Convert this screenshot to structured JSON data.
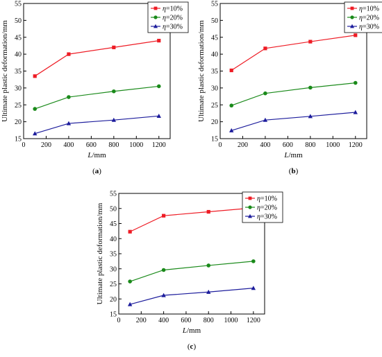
{
  "chart_data": [
    {
      "type": "line",
      "panel_label": "(a)",
      "xlabel_main": "L",
      "xlabel_unit": "/mm",
      "ylabel": "Ultimate plastic deformation/mm",
      "xlim": [
        0,
        1300
      ],
      "ylim": [
        15,
        55
      ],
      "xticks": [
        0,
        200,
        400,
        600,
        800,
        1000,
        1200
      ],
      "yticks": [
        15,
        20,
        25,
        30,
        35,
        40,
        45,
        50,
        55
      ],
      "legend_position": "top-right",
      "x": [
        100,
        400,
        800,
        1200
      ],
      "series": [
        {
          "name_sym": "η",
          "name_rest": "=10%",
          "color": "#ee1c25",
          "marker": "square",
          "values": [
            33.5,
            40.0,
            42.0,
            44.0
          ]
        },
        {
          "name_sym": "η",
          "name_rest": "=20%",
          "color": "#1a8a1a",
          "marker": "circle",
          "values": [
            23.8,
            27.3,
            29.0,
            30.5
          ]
        },
        {
          "name_sym": "η",
          "name_rest": "=30%",
          "color": "#1c1c9c",
          "marker": "triangle",
          "values": [
            16.5,
            19.5,
            20.5,
            21.7
          ]
        }
      ]
    },
    {
      "type": "line",
      "panel_label": "(b)",
      "xlabel_main": "L",
      "xlabel_unit": "/mm",
      "ylabel": "Ultimate plastic deformation/mm",
      "xlim": [
        0,
        1300
      ],
      "ylim": [
        15,
        55
      ],
      "xticks": [
        0,
        200,
        400,
        600,
        800,
        1000,
        1200
      ],
      "yticks": [
        15,
        20,
        25,
        30,
        35,
        40,
        45,
        50,
        55
      ],
      "legend_position": "top-right",
      "x": [
        100,
        400,
        800,
        1200
      ],
      "series": [
        {
          "name_sym": "η",
          "name_rest": "=10%",
          "color": "#ee1c25",
          "marker": "square",
          "values": [
            35.2,
            41.7,
            43.7,
            45.6
          ]
        },
        {
          "name_sym": "η",
          "name_rest": "=20%",
          "color": "#1a8a1a",
          "marker": "circle",
          "values": [
            24.8,
            28.4,
            30.1,
            31.5
          ]
        },
        {
          "name_sym": "η",
          "name_rest": "=30%",
          "color": "#1c1c9c",
          "marker": "triangle",
          "values": [
            17.4,
            20.5,
            21.6,
            22.8
          ]
        }
      ]
    },
    {
      "type": "line",
      "panel_label": "(c)",
      "xlabel_main": "L",
      "xlabel_unit": "/mm",
      "ylabel": "Ultimate plastic deformation/mm",
      "xlim": [
        0,
        1300
      ],
      "ylim": [
        15,
        55
      ],
      "xticks": [
        0,
        200,
        400,
        600,
        800,
        1000,
        1200
      ],
      "yticks": [
        15,
        20,
        25,
        30,
        35,
        40,
        45,
        50,
        55
      ],
      "legend_position": "top-right",
      "x": [
        100,
        400,
        800,
        1200
      ],
      "series": [
        {
          "name_sym": "η",
          "name_rest": "=10%",
          "color": "#ee1c25",
          "marker": "square",
          "values": [
            42.3,
            47.6,
            48.9,
            50.2
          ]
        },
        {
          "name_sym": "η",
          "name_rest": "=20%",
          "color": "#1a8a1a",
          "marker": "circle",
          "values": [
            25.8,
            29.6,
            31.1,
            32.5
          ]
        },
        {
          "name_sym": "η",
          "name_rest": "=30%",
          "color": "#1c1c9c",
          "marker": "triangle",
          "values": [
            18.2,
            21.2,
            22.3,
            23.6
          ]
        }
      ]
    }
  ]
}
